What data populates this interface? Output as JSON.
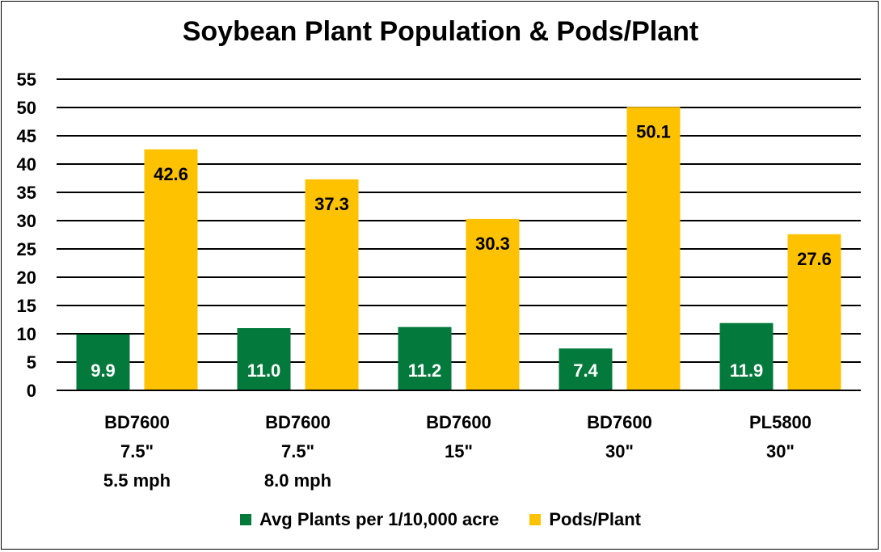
{
  "chart_data": {
    "type": "bar",
    "title": "Soybean Plant Population & Pods/Plant",
    "categories": [
      [
        "BD7600",
        "7.5\"",
        "5.5 mph"
      ],
      [
        "BD7600",
        "7.5\"",
        "8.0 mph"
      ],
      [
        "BD7600",
        "15\""
      ],
      [
        "BD7600",
        "30\""
      ],
      [
        "PL5800",
        "30\""
      ]
    ],
    "series": [
      {
        "name": "Avg Plants per 1/10,000 acre",
        "color": "#037a3c",
        "label_color": "#ffffff",
        "values": [
          9.9,
          11.0,
          11.2,
          7.4,
          11.9
        ],
        "labels": [
          "9.9",
          "11.0",
          "11.2",
          "7.4",
          "11.9"
        ]
      },
      {
        "name": "Pods/Plant",
        "color": "#fec200",
        "label_color": "#000000",
        "values": [
          42.6,
          37.3,
          30.3,
          50.1,
          27.6
        ],
        "labels": [
          "42.6",
          "37.3",
          "30.3",
          "50.1",
          "27.6"
        ]
      }
    ],
    "ylim": [
      0,
      55
    ],
    "yticks": [
      0,
      5,
      10,
      15,
      20,
      25,
      30,
      35,
      40,
      45,
      50,
      55
    ],
    "grid": true,
    "legend": "bottom",
    "xlabel": "",
    "ylabel": ""
  }
}
